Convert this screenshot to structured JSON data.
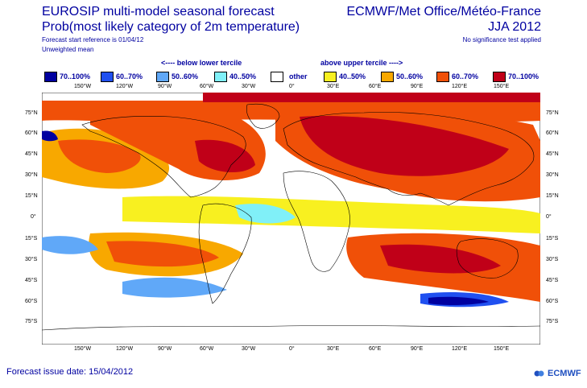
{
  "header": {
    "title_left_1": "EUROSIP multi-model seasonal forecast",
    "title_left_2": "Prob(most likely category of 2m temperature)",
    "start_ref": "Forecast start reference is 01/04/12",
    "mean_type": "Unweighted mean",
    "title_right_1": "ECMWF/Met Office/Météo-France",
    "title_right_2": "JJA 2012",
    "sig_note": "No significance test applied"
  },
  "legend": {
    "below_label": "<---- below lower tercile",
    "above_label": "above upper tercile ---->",
    "items": [
      {
        "label": "70..100%",
        "color": "#0000a0"
      },
      {
        "label": "60..70%",
        "color": "#2050f0"
      },
      {
        "label": "50..60%",
        "color": "#60a8f8"
      },
      {
        "label": "40..50%",
        "color": "#80f0f8"
      },
      {
        "label": "other",
        "color": "#ffffff"
      },
      {
        "label": "40..50%",
        "color": "#f8f020"
      },
      {
        "label": "50..60%",
        "color": "#f8a800"
      },
      {
        "label": "60..70%",
        "color": "#f05008"
      },
      {
        "label": "70..100%",
        "color": "#c00018"
      }
    ]
  },
  "axes": {
    "lon_labels": [
      "150°W",
      "120°W",
      "90°W",
      "60°W",
      "30°W",
      "0°",
      "30°E",
      "60°E",
      "90°E",
      "120°E",
      "150°E"
    ],
    "lat_labels": [
      "75°N",
      "60°N",
      "45°N",
      "30°N",
      "15°N",
      "0°",
      "15°S",
      "30°S",
      "45°S",
      "60°S",
      "75°S"
    ]
  },
  "footer": {
    "issue_date": "Forecast issue date: 15/04/2012",
    "logo_text": "ECMWF"
  }
}
